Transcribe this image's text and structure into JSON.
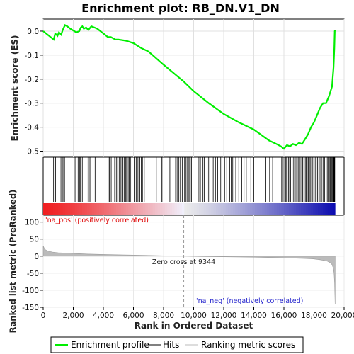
{
  "chart_data": {
    "type": "line",
    "title": "Enrichment plot: RB_DN.V1_DN",
    "colors": {
      "enrichment": "#00ee00",
      "hits": "#000000",
      "ranking_fill": "#bbbbbb",
      "pos_label": "#dd0000",
      "neg_label": "#2222cc",
      "zero_cross_line": "#999999"
    },
    "top_panel": {
      "ylabel": "Enrichment score (ES)",
      "ylim": [
        -0.525,
        0.05
      ],
      "yticks": [
        0.0,
        -0.1,
        -0.2,
        -0.3,
        -0.4,
        -0.5
      ],
      "ytick_labels": [
        "0.0",
        "-0.1",
        "-0.2",
        "-0.3",
        "-0.4",
        "-0.5"
      ],
      "grid": true,
      "series": [
        {
          "name": "Enrichment profile",
          "x": [
            0,
            700,
            800,
            950,
            1050,
            1200,
            1300,
            1450,
            1600,
            1800,
            2200,
            2400,
            2500,
            2600,
            2700,
            2850,
            3000,
            3200,
            3400,
            3600,
            4000,
            4300,
            4500,
            4800,
            5000,
            5500,
            6000,
            6500,
            7000,
            8000,
            9344,
            10000,
            11000,
            12000,
            13000,
            14000,
            15000,
            15500,
            15800,
            16000,
            16200,
            16400,
            16600,
            16800,
            17000,
            17200,
            17400,
            17600,
            17800,
            18000,
            18200,
            18400,
            18600,
            18800,
            19000,
            19200,
            19300,
            19350,
            19380,
            19400
          ],
          "y": [
            0.0,
            -0.035,
            -0.01,
            -0.02,
            -0.005,
            -0.015,
            0.005,
            0.025,
            0.02,
            0.01,
            -0.005,
            0.0,
            0.015,
            0.02,
            0.01,
            0.015,
            0.005,
            0.02,
            0.015,
            0.01,
            -0.01,
            -0.025,
            -0.025,
            -0.035,
            -0.035,
            -0.04,
            -0.05,
            -0.07,
            -0.085,
            -0.14,
            -0.21,
            -0.25,
            -0.3,
            -0.345,
            -0.38,
            -0.41,
            -0.455,
            -0.47,
            -0.48,
            -0.49,
            -0.475,
            -0.48,
            -0.47,
            -0.475,
            -0.465,
            -0.47,
            -0.45,
            -0.43,
            -0.4,
            -0.38,
            -0.35,
            -0.32,
            -0.3,
            -0.3,
            -0.27,
            -0.23,
            -0.15,
            -0.07,
            0.0,
            0.005
          ]
        }
      ]
    },
    "hits_panel": {
      "legend_name": "Hits",
      "hit_ranks": [
        690,
        820,
        920,
        1060,
        1180,
        1260,
        1320,
        1420,
        2120,
        2320,
        2410,
        2460,
        2520,
        2600,
        2980,
        3060,
        3150,
        3450,
        4320,
        4400,
        4450,
        4520,
        4750,
        4860,
        4950,
        5050,
        5110,
        5170,
        5240,
        5300,
        5380,
        5450,
        5500,
        5560,
        5650,
        5720,
        5800,
        5900,
        6050,
        6180,
        6300,
        6420,
        6520,
        6600,
        6720,
        7520,
        7850,
        7900,
        8420,
        8800,
        8900,
        8960,
        9020,
        9120,
        9240,
        9400,
        9470,
        9560,
        9640,
        9700,
        9780,
        9860,
        9950,
        10350,
        10450,
        10620,
        10700,
        10900,
        11000,
        11080,
        11300,
        11450,
        11600,
        11800,
        12060,
        12200,
        12400,
        12500,
        12600,
        12800,
        13000,
        13200,
        13350,
        13500,
        13800,
        14000,
        14800,
        15050,
        15250,
        15600,
        15850,
        15950,
        16050,
        16100,
        16150,
        16220,
        16300,
        16380,
        16450,
        16550,
        16650,
        16720,
        16800,
        16880,
        16950,
        17020,
        17080,
        17180,
        17250,
        17330,
        17420,
        17480,
        17550,
        17620,
        17700,
        17780,
        17850,
        17920,
        18000,
        18080,
        18150,
        18230,
        18320,
        18400,
        18500,
        18600,
        18700,
        18800,
        18880,
        18950,
        19020,
        19080,
        19150,
        19200,
        19250,
        19300,
        19330,
        19360,
        19380
      ]
    },
    "ranking_panel": {
      "ylabel": "Ranked list metric (PreRanked)",
      "ylim": [
        -150,
        120
      ],
      "yticks": [
        100,
        50,
        0,
        -50,
        -100,
        -150
      ],
      "ytick_labels": [
        "100",
        "50",
        "0",
        "-50",
        "-100",
        "-150"
      ],
      "series": [
        {
          "name": "Ranking metric scores",
          "x": [
            0,
            100,
            300,
            600,
            1000,
            2000,
            3000,
            4000,
            5000,
            6000,
            7000,
            8000,
            9344,
            10500,
            12000,
            13000,
            14000,
            15000,
            16000,
            16800,
            17400,
            17900,
            18300,
            18600,
            18900,
            19100,
            19200,
            19280,
            19330,
            19370,
            19400
          ],
          "y": [
            30,
            20,
            15,
            12,
            10,
            8,
            6,
            5,
            4,
            3,
            2,
            1,
            0,
            -1,
            -2,
            -2.5,
            -3,
            -4,
            -5,
            -6,
            -7,
            -8,
            -10,
            -12,
            -15,
            -20,
            -25,
            -35,
            -50,
            -80,
            -140
          ]
        }
      ],
      "pos_label": "'na_pos' (positively correlated)",
      "neg_label": "'na_neg' (negatively correlated)",
      "zero_cross_text": "Zero cross at 9344",
      "zero_cross": 9344
    },
    "xaxis": {
      "xlabel": "Rank in Ordered Dataset",
      "xlim": [
        0,
        20000
      ],
      "n_ranks": 19400,
      "xticks": [
        0,
        2000,
        4000,
        6000,
        8000,
        10000,
        12000,
        14000,
        16000,
        18000,
        20000
      ],
      "xtick_labels": [
        "0",
        "2,000",
        "4,000",
        "6,000",
        "8,000",
        "10,000",
        "12,000",
        "14,000",
        "16,000",
        "18,000",
        "20,000"
      ]
    },
    "legend": {
      "placement": "bottom",
      "items": [
        {
          "label": "Enrichment profile",
          "type": "line",
          "color": "#00ee00"
        },
        {
          "label": "Hits",
          "type": "line",
          "color": "#000000"
        },
        {
          "label": "Ranking metric scores",
          "type": "line",
          "color": "#bbbbbb"
        }
      ]
    }
  }
}
